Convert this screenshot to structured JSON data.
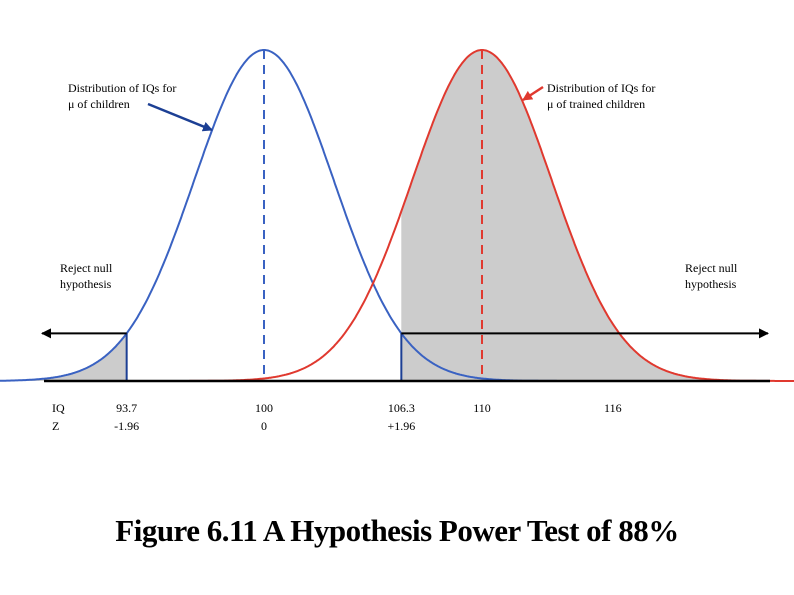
{
  "chart_data": {
    "type": "area",
    "title": "Figure 6.11 A Hypothesis Power Test of 88%",
    "series": [
      {
        "name": "Distribution of IQs for μ of children",
        "mean": 100,
        "color": "#3a62c2"
      },
      {
        "name": "Distribution of IQs for μ of trained children",
        "mean": 110,
        "color": "#e0392f"
      }
    ],
    "common_sd": 3.2,
    "critical_values": [
      93.7,
      106.3
    ],
    "shaded_regions": [
      "IQ < 93.7 under children curve",
      "IQ > 106.3 under trained children curve"
    ],
    "x_range": [
      86,
      126
    ],
    "axis_rows": [
      {
        "label": "IQ",
        "ticks": [
          "93.7",
          "100",
          "106.3",
          "110",
          "116"
        ]
      },
      {
        "label": "Z",
        "ticks": [
          "-1.96",
          "0",
          "+1.96"
        ]
      }
    ],
    "tick_positions": [
      93.7,
      100,
      106.3,
      110,
      116
    ],
    "annotations": {
      "children_curve": [
        "Distribution of IQs for",
        "μ of children"
      ],
      "trained_curve": [
        "Distribution of IQs for",
        "μ of trained children"
      ],
      "reject_left": [
        "Reject null",
        "hypothesis"
      ],
      "reject_right": [
        "Reject null",
        "hypothesis"
      ]
    },
    "grid": false
  }
}
